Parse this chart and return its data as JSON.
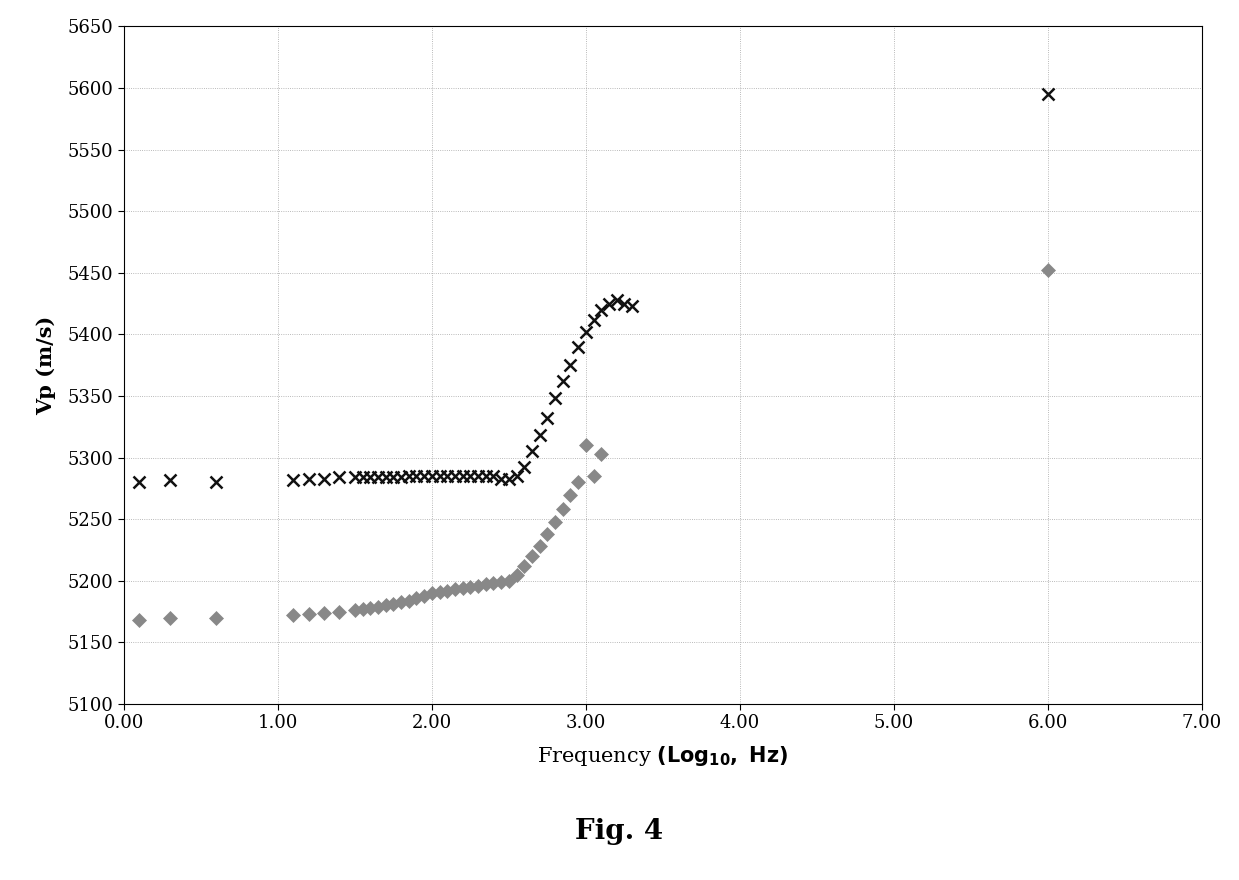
{
  "title": "Fig. 4",
  "ylabel": "Vp (m/s)",
  "xlim": [
    0.0,
    7.0
  ],
  "ylim": [
    5100,
    5650
  ],
  "yticks": [
    5100,
    5150,
    5200,
    5250,
    5300,
    5350,
    5400,
    5450,
    5500,
    5550,
    5600,
    5650
  ],
  "xticks": [
    0.0,
    1.0,
    2.0,
    3.0,
    4.0,
    5.0,
    6.0,
    7.0
  ],
  "xtick_labels": [
    "0.00",
    "1.00",
    "2.00",
    "3.00",
    "4.00",
    "5.00",
    "6.00",
    "7.00"
  ],
  "diamond_x": [
    0.1,
    0.3,
    0.6,
    1.1,
    1.2,
    1.3,
    1.4,
    1.5,
    1.55,
    1.6,
    1.65,
    1.7,
    1.75,
    1.8,
    1.85,
    1.9,
    1.95,
    2.0,
    2.05,
    2.1,
    2.15,
    2.2,
    2.25,
    2.3,
    2.35,
    2.4,
    2.45,
    2.5,
    2.55,
    2.6,
    2.65,
    2.7,
    2.75,
    2.8,
    2.85,
    2.9,
    2.95,
    3.0,
    3.05,
    3.1,
    6.0
  ],
  "diamond_y": [
    5168,
    5170,
    5170,
    5172,
    5173,
    5174,
    5175,
    5176,
    5177,
    5178,
    5179,
    5180,
    5181,
    5183,
    5184,
    5186,
    5188,
    5190,
    5191,
    5192,
    5193,
    5194,
    5195,
    5196,
    5197,
    5198,
    5199,
    5200,
    5205,
    5212,
    5220,
    5228,
    5238,
    5248,
    5258,
    5270,
    5280,
    5310,
    5285,
    5303,
    5452
  ],
  "cross_x": [
    0.1,
    0.3,
    0.6,
    1.1,
    1.2,
    1.3,
    1.4,
    1.5,
    1.55,
    1.6,
    1.65,
    1.7,
    1.75,
    1.8,
    1.85,
    1.9,
    1.95,
    2.0,
    2.05,
    2.1,
    2.15,
    2.2,
    2.25,
    2.3,
    2.35,
    2.4,
    2.45,
    2.5,
    2.55,
    2.6,
    2.65,
    2.7,
    2.75,
    2.8,
    2.85,
    2.9,
    2.95,
    3.0,
    3.05,
    3.1,
    3.15,
    3.2,
    3.25,
    3.3,
    6.0
  ],
  "cross_y": [
    5280,
    5282,
    5280,
    5282,
    5283,
    5283,
    5284,
    5284,
    5284,
    5284,
    5284,
    5284,
    5284,
    5284,
    5285,
    5285,
    5285,
    5285,
    5285,
    5285,
    5285,
    5285,
    5285,
    5285,
    5285,
    5285,
    5283,
    5283,
    5285,
    5292,
    5305,
    5318,
    5332,
    5348,
    5362,
    5375,
    5390,
    5402,
    5412,
    5420,
    5425,
    5428,
    5425,
    5423,
    5595
  ],
  "background_color": "#ffffff",
  "grid_color": "#999999",
  "marker_color_diamond": "#888888",
  "marker_color_cross": "#111111",
  "ylabel_fontsize": 15,
  "xlabel_fontsize": 15,
  "tick_fontsize": 13,
  "title_fontsize": 20
}
